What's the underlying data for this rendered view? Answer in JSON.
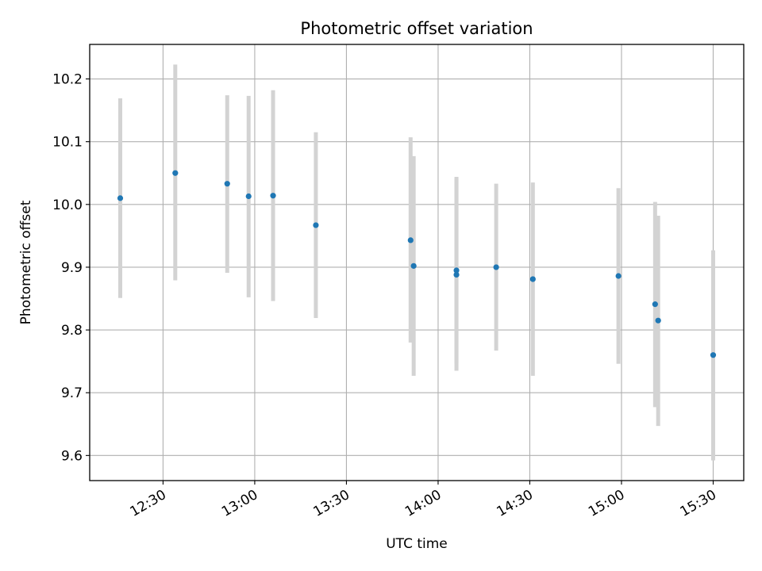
{
  "chart_data": {
    "type": "scatter",
    "title": "Photometric offset variation",
    "xlabel": "UTC time",
    "ylabel": "Photometric offset",
    "xlim": [
      "12:06",
      "15:40"
    ],
    "ylim": [
      9.56,
      10.255
    ],
    "x_ticks": [
      "12:30",
      "13:00",
      "13:30",
      "14:00",
      "14:30",
      "15:00",
      "15:30"
    ],
    "y_ticks": [
      9.6,
      9.7,
      9.8,
      9.9,
      10.0,
      10.1,
      10.2
    ],
    "y_tick_labels": [
      "9.6",
      "9.7",
      "9.8",
      "9.9",
      "10.0",
      "10.1",
      "10.2"
    ],
    "grid": true,
    "point_color": "#1f77b4",
    "errorbar_color": "#d3d3d3",
    "points": [
      {
        "time": "12:16",
        "y": 10.01,
        "y_low": 9.851,
        "y_high": 10.169
      },
      {
        "time": "12:34",
        "y": 10.05,
        "y_low": 9.879,
        "y_high": 10.223
      },
      {
        "time": "12:51",
        "y": 10.033,
        "y_low": 9.891,
        "y_high": 10.174
      },
      {
        "time": "12:58",
        "y": 10.013,
        "y_low": 9.852,
        "y_high": 10.173
      },
      {
        "time": "13:06",
        "y": 10.014,
        "y_low": 9.846,
        "y_high": 10.182
      },
      {
        "time": "13:20",
        "y": 9.967,
        "y_low": 9.819,
        "y_high": 10.115
      },
      {
        "time": "13:51",
        "y": 9.943,
        "y_low": 9.78,
        "y_high": 10.107
      },
      {
        "time": "13:52",
        "y": 9.902,
        "y_low": 9.727,
        "y_high": 10.077
      },
      {
        "time": "14:06",
        "y": 9.895,
        "y_low": 9.746,
        "y_high": 10.044
      },
      {
        "time": "14:06",
        "y": 9.888,
        "y_low": 9.735,
        "y_high": 10.041
      },
      {
        "time": "14:19",
        "y": 9.9,
        "y_low": 9.767,
        "y_high": 10.033
      },
      {
        "time": "14:31",
        "y": 9.881,
        "y_low": 9.727,
        "y_high": 10.035
      },
      {
        "time": "14:59",
        "y": 9.886,
        "y_low": 9.746,
        "y_high": 10.026
      },
      {
        "time": "15:11",
        "y": 9.841,
        "y_low": 9.677,
        "y_high": 10.004
      },
      {
        "time": "15:12",
        "y": 9.815,
        "y_low": 9.647,
        "y_high": 9.982
      },
      {
        "time": "15:30",
        "y": 9.76,
        "y_low": 9.592,
        "y_high": 9.927
      }
    ]
  }
}
